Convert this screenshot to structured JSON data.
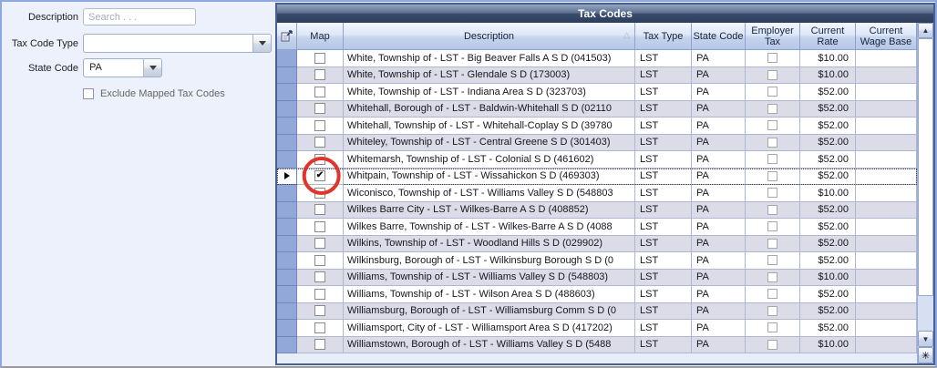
{
  "filter_panel": {
    "description_label": "Description",
    "description_placeholder": "Search . . .",
    "tax_code_type_label": "Tax Code Type",
    "tax_code_type_value": "",
    "state_code_label": "State Code",
    "state_code_value": "PA",
    "exclude_mapped_label": "Exclude Mapped Tax Codes",
    "exclude_mapped_checked": false
  },
  "grid": {
    "title": "Tax Codes",
    "columns": [
      "Map",
      "Description",
      "Tax Type",
      "State Code",
      "Employer Tax",
      "Current Rate",
      "Current Wage Base"
    ],
    "sort": {
      "column": "Description",
      "direction": "ascending"
    },
    "selected_row_index": 7,
    "annotation": {
      "type": "red-circle",
      "target": "map-checkbox-of-selected-row",
      "color": "#e0352b"
    },
    "rows": [
      {
        "map": false,
        "description": "White, Township of - LST - Big Beaver Falls A S D (041503)",
        "tax_type": "LST",
        "state_code": "PA",
        "employer_tax": false,
        "current_rate": "$10.00",
        "current_wage_base": "",
        "selected": false
      },
      {
        "map": false,
        "description": "White, Township of - LST - Glendale S D (173003)",
        "tax_type": "LST",
        "state_code": "PA",
        "employer_tax": false,
        "current_rate": "$10.00",
        "current_wage_base": "",
        "selected": false
      },
      {
        "map": false,
        "description": "White, Township of - LST - Indiana Area S D (323703)",
        "tax_type": "LST",
        "state_code": "PA",
        "employer_tax": false,
        "current_rate": "$52.00",
        "current_wage_base": "",
        "selected": false
      },
      {
        "map": false,
        "description": "Whitehall, Borough of - LST - Baldwin-Whitehall S D (02110",
        "tax_type": "LST",
        "state_code": "PA",
        "employer_tax": false,
        "current_rate": "$52.00",
        "current_wage_base": "",
        "selected": false
      },
      {
        "map": false,
        "description": "Whitehall, Township of - LST - Whitehall-Coplay S D (39780",
        "tax_type": "LST",
        "state_code": "PA",
        "employer_tax": false,
        "current_rate": "$52.00",
        "current_wage_base": "",
        "selected": false
      },
      {
        "map": false,
        "description": "Whiteley, Township of - LST - Central Greene S D (301403)",
        "tax_type": "LST",
        "state_code": "PA",
        "employer_tax": false,
        "current_rate": "$52.00",
        "current_wage_base": "",
        "selected": false
      },
      {
        "map": false,
        "description": "Whitemarsh, Township of - LST - Colonial S D (461602)",
        "tax_type": "LST",
        "state_code": "PA",
        "employer_tax": false,
        "current_rate": "$52.00",
        "current_wage_base": "",
        "selected": false
      },
      {
        "map": true,
        "description": "Whitpain, Township of - LST - Wissahickon S D (469303)",
        "tax_type": "LST",
        "state_code": "PA",
        "employer_tax": false,
        "current_rate": "$52.00",
        "current_wage_base": "",
        "selected": true
      },
      {
        "map": false,
        "description": "Wiconisco, Township of - LST - Williams Valley S D (548803",
        "tax_type": "LST",
        "state_code": "PA",
        "employer_tax": false,
        "current_rate": "$10.00",
        "current_wage_base": "",
        "selected": false
      },
      {
        "map": false,
        "description": "Wilkes Barre City - LST - Wilkes-Barre A S D (408852)",
        "tax_type": "LST",
        "state_code": "PA",
        "employer_tax": false,
        "current_rate": "$52.00",
        "current_wage_base": "",
        "selected": false
      },
      {
        "map": false,
        "description": "Wilkes Barre, Township of - LST - Wilkes-Barre A S D (4088",
        "tax_type": "LST",
        "state_code": "PA",
        "employer_tax": false,
        "current_rate": "$52.00",
        "current_wage_base": "",
        "selected": false
      },
      {
        "map": false,
        "description": "Wilkins, Township of - LST - Woodland Hills S D (029902)",
        "tax_type": "LST",
        "state_code": "PA",
        "employer_tax": false,
        "current_rate": "$52.00",
        "current_wage_base": "",
        "selected": false
      },
      {
        "map": false,
        "description": "Wilkinsburg, Borough of - LST - Wilkinsburg Borough S D (0",
        "tax_type": "LST",
        "state_code": "PA",
        "employer_tax": false,
        "current_rate": "$52.00",
        "current_wage_base": "",
        "selected": false
      },
      {
        "map": false,
        "description": "Williams, Township of - LST - Williams Valley S D (548803)",
        "tax_type": "LST",
        "state_code": "PA",
        "employer_tax": false,
        "current_rate": "$10.00",
        "current_wage_base": "",
        "selected": false
      },
      {
        "map": false,
        "description": "Williams, Township of - LST - Wilson Area S D (488603)",
        "tax_type": "LST",
        "state_code": "PA",
        "employer_tax": false,
        "current_rate": "$52.00",
        "current_wage_base": "",
        "selected": false
      },
      {
        "map": false,
        "description": "Williamsburg, Borough of - LST - Williamsburg Comm S D (0",
        "tax_type": "LST",
        "state_code": "PA",
        "employer_tax": false,
        "current_rate": "$52.00",
        "current_wage_base": "",
        "selected": false
      },
      {
        "map": false,
        "description": "Williamsport, City of - LST - Williamsport Area S D (417202)",
        "tax_type": "LST",
        "state_code": "PA",
        "employer_tax": false,
        "current_rate": "$52.00",
        "current_wage_base": "",
        "selected": false
      },
      {
        "map": false,
        "description": "Williamstown, Borough of - LST - Williams Valley S D (5488",
        "tax_type": "LST",
        "state_code": "PA",
        "employer_tax": false,
        "current_rate": "$10.00",
        "current_wage_base": "",
        "selected": false
      }
    ]
  },
  "scrollbar": {
    "up_glyph": "▲",
    "down_glyph": "▼",
    "new_row_glyph": "✳"
  },
  "colors": {
    "annotation_red": "#e0352b",
    "row_alt": "#dbdce8",
    "row_selector_blue": "#92a8d8",
    "title_bar_dark": "#2d3e5d",
    "header_text": "#16243f"
  }
}
